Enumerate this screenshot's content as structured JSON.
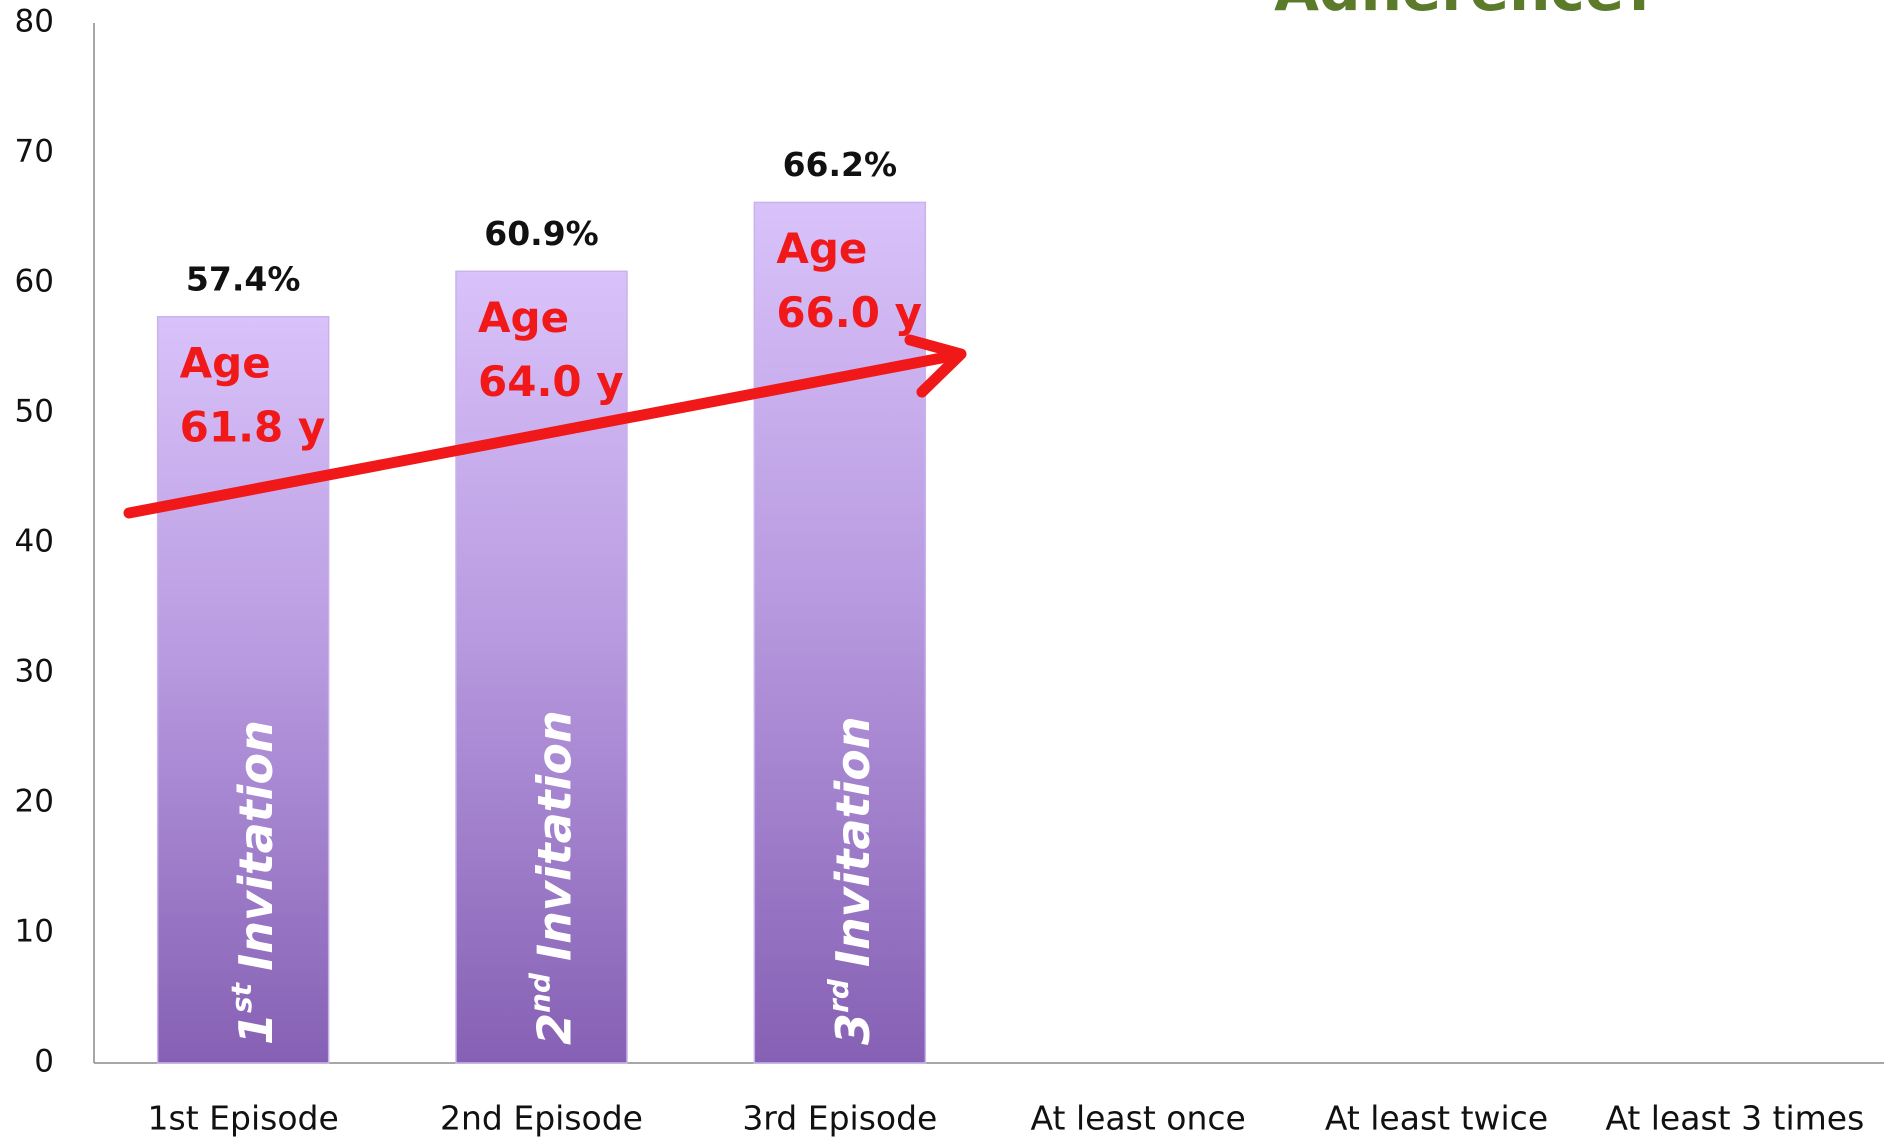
{
  "chart_data": {
    "type": "bar",
    "title": "Adherence?",
    "categories": [
      "1st Episode",
      "2nd Episode",
      "3rd Episode",
      "At least once",
      "At least twice",
      "At least 3 times"
    ],
    "values": [
      57.4,
      60.9,
      66.2,
      null,
      null,
      null
    ],
    "value_labels": [
      "57.4%",
      "60.9%",
      "66.2%",
      null,
      null,
      null
    ],
    "age_labels": [
      [
        "Age",
        "61.8 y"
      ],
      [
        "Age",
        "64.0 y"
      ],
      [
        "Age",
        "66.0 y"
      ],
      null,
      null,
      null
    ],
    "bar_labels": [
      {
        "number": "1",
        "suffix": "st",
        "word": "Invitation"
      },
      {
        "number": "2",
        "suffix": "nd",
        "word": "Invitation"
      },
      {
        "number": "3",
        "suffix": "rd",
        "word": "Invitation"
      },
      null,
      null,
      null
    ],
    "ylim": [
      0,
      80
    ],
    "yticks": [
      0,
      10,
      20,
      30,
      40,
      50,
      60,
      70,
      80
    ],
    "grid": false
  }
}
